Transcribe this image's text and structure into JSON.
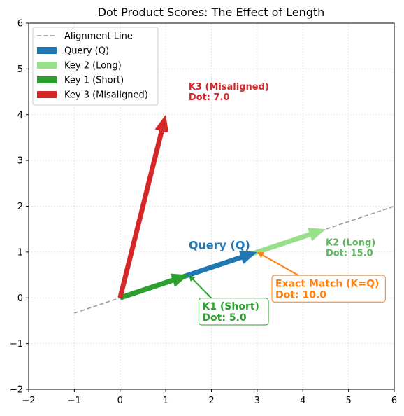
{
  "chart_data": {
    "type": "vector",
    "title": "Dot Product Scores: The Effect of Length",
    "xlabel": "",
    "ylabel": "",
    "xlim": [
      -2,
      6
    ],
    "ylim": [
      -2,
      6
    ],
    "x_ticks": [
      "−2",
      "−1",
      "0",
      "1",
      "2",
      "3",
      "4",
      "5",
      "6"
    ],
    "y_ticks": [
      "−2",
      "−1",
      "0",
      "1",
      "2",
      "3",
      "4",
      "5",
      "6"
    ],
    "grid": true,
    "legend_position": "top-left",
    "alignment_line": {
      "name": "Alignment Line",
      "x": [
        -1,
        6
      ],
      "y": [
        -0.333,
        2
      ],
      "color": "#999999",
      "style": "dashed"
    },
    "vectors": [
      {
        "id": "k2",
        "name": "Key 2 (Long)",
        "from": [
          0,
          0
        ],
        "to": [
          4.5,
          1.5
        ],
        "color": "#98df8a",
        "width": "thick"
      },
      {
        "id": "q",
        "name": "Query (Q)",
        "from": [
          0,
          0
        ],
        "to": [
          3,
          1
        ],
        "color": "#1f77b4",
        "width": "thick"
      },
      {
        "id": "k1",
        "name": "Key 1 (Short)",
        "from": [
          0,
          0
        ],
        "to": [
          1.5,
          0.5
        ],
        "color": "#2ca02c",
        "width": "thick"
      },
      {
        "id": "k3",
        "name": "Key 3 (Misaligned)",
        "from": [
          0,
          0
        ],
        "to": [
          1,
          4
        ],
        "color": "#d62728",
        "width": "thick"
      }
    ],
    "legend": [
      {
        "label": "Alignment Line",
        "color": "#999999",
        "kind": "dashed-line"
      },
      {
        "label": "Query (Q)",
        "color": "#1f77b4",
        "kind": "patch"
      },
      {
        "label": "Key 2 (Long)",
        "color": "#98df8a",
        "kind": "patch"
      },
      {
        "label": "Key 1 (Short)",
        "color": "#2ca02c",
        "kind": "patch"
      },
      {
        "label": "Key 3 (Misaligned)",
        "color": "#d62728",
        "kind": "patch"
      }
    ],
    "annotations": [
      {
        "id": "query-label",
        "lines": [
          "Query (Q)"
        ],
        "color": "#1f77b4",
        "at": [
          1.5,
          1.15
        ],
        "boxed": false,
        "size": "large"
      },
      {
        "id": "k3-label",
        "lines": [
          "K3 (Misaligned)",
          "Dot: 7.0"
        ],
        "color": "#d62728",
        "at": [
          1.5,
          4.5
        ],
        "boxed": false,
        "size": "normal"
      },
      {
        "id": "k2-label",
        "lines": [
          "K2 (Long)",
          "Dot: 15.0"
        ],
        "color": "#5cb85c",
        "at": [
          4.5,
          1.1
        ],
        "boxed": false,
        "size": "normal"
      },
      {
        "id": "exact-label",
        "lines": [
          "Exact Match (K=Q)",
          "Dot: 10.0"
        ],
        "color": "#ff7f0e",
        "at": [
          3.4,
          0.2
        ],
        "boxed": true,
        "size": "medium",
        "arrow_to": [
          3.0,
          1.0
        ]
      },
      {
        "id": "k1-label",
        "lines": [
          "K1 (Short)",
          "Dot: 5.0"
        ],
        "color": "#2ca02c",
        "at": [
          1.8,
          -0.3
        ],
        "boxed": true,
        "size": "medium",
        "arrow_to": [
          1.5,
          0.5
        ]
      }
    ]
  }
}
